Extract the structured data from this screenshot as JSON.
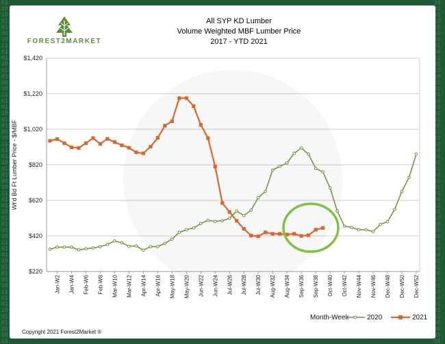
{
  "decoration": {
    "binary_left": "0110100101001011010110010100101101011001010010110101100101001011010110010100101101011001010010110101100101001011010110010100101101011001010010110101100101001011010110010100101101011001010010110101100101001011",
    "binary_right": "1001011010100101001101101001010110100101001101101001010110100101001101101001010110100101001101101001010110100101001101101001010110100101001101101001010110100101001101101001010110100101001101101001010110100101"
  },
  "logo": {
    "text": "FOREST2MARKET",
    "icon": "tree-icon",
    "color": "#5c8f3a"
  },
  "title_lines": [
    "All SYP KD Lumber",
    "Volume Weighted MBF Lumber Price",
    "2017 - YTD 2021"
  ],
  "copyright": "Copyright 2021 Forest2Market ®",
  "colors": {
    "series_2020": "#6b8f3a",
    "series_2021": "#d9662a",
    "highlight_circle": "#7dc242",
    "grid": "#c8c8c8",
    "axis": "#999999"
  },
  "chart_data": {
    "type": "line",
    "title": "All SYP KD Lumber\nVolume Weighted MBF Lumber Price\n2017 - YTD 2021",
    "ylabel": "Wt'd Bd Ft Lumber Price - $/MBF",
    "xlabel": "Month-Week",
    "ylim": [
      220,
      1420
    ],
    "yticks": [
      "$1,420",
      "$1,220",
      "$1,020",
      "$820",
      "$620",
      "$420",
      "$220"
    ],
    "ytick_values": [
      1420,
      1220,
      1020,
      820,
      620,
      420,
      220
    ],
    "x_tick_labels": [
      "Jan-W2",
      "Jan-W4",
      "Feb-W6",
      "Feb-W8",
      "Mar-W10",
      "Mar-W12",
      "Apr-W14",
      "Apr-W16",
      "May-W18",
      "May-W20",
      "Jun-W22",
      "Jun-W24",
      "Jul-W26",
      "Jul-W28",
      "Jul-W30",
      "Aug-W32",
      "Aug-W34",
      "Sep-W36",
      "Sep-W38",
      "Oct-W40",
      "Oct-W42",
      "Nov-W44",
      "Nov-W46",
      "Dec-W48",
      "Dec-W50",
      "Dec-W52"
    ],
    "legend_position": "bottom-right",
    "grid": true,
    "series": [
      {
        "name": "2020",
        "marker": "circle",
        "values": [
          345,
          357,
          357,
          357,
          342,
          348,
          352,
          360,
          372,
          392,
          382,
          362,
          364,
          340,
          360,
          360,
          378,
          402,
          440,
          455,
          465,
          490,
          508,
          502,
          505,
          520,
          560,
          535,
          565,
          635,
          670,
          790,
          812,
          830,
          885,
          915,
          880,
          800,
          780,
          690,
          560,
          475,
          468,
          455,
          455,
          445,
          485,
          500,
          570,
          670,
          750,
          880
        ]
      },
      {
        "name": "2021",
        "marker": "square",
        "values": [
          955,
          965,
          942,
          918,
          915,
          942,
          970,
          938,
          966,
          948,
          930,
          916,
          890,
          885,
          922,
          972,
          1040,
          1065,
          1195,
          1195,
          1150,
          1045,
          970,
          810,
          605,
          555,
          505,
          460,
          422,
          418,
          440,
          432,
          432,
          428,
          432,
          420,
          424,
          455,
          465
        ]
      }
    ]
  }
}
